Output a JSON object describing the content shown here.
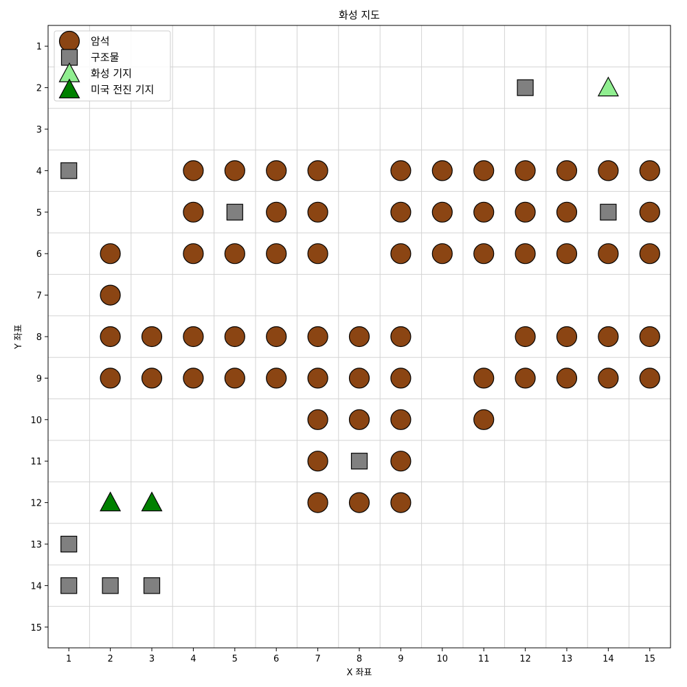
{
  "chart_data": {
    "type": "scatter",
    "title": "화성 지도",
    "xlabel": "X 좌표",
    "ylabel": "Y 좌표",
    "xlim": [
      0.5,
      15.5
    ],
    "ylim": [
      15.5,
      0.5
    ],
    "y_inverted": true,
    "xticks": [
      "1",
      "2",
      "3",
      "4",
      "5",
      "6",
      "7",
      "8",
      "9",
      "10",
      "11",
      "12",
      "13",
      "14",
      "15"
    ],
    "yticks": [
      "1",
      "2",
      "3",
      "4",
      "5",
      "6",
      "7",
      "8",
      "9",
      "10",
      "11",
      "12",
      "13",
      "14",
      "15"
    ],
    "grid": true,
    "grid_style": "cell-boundaries",
    "legend_position": "top-left",
    "series": [
      {
        "name": "암석",
        "marker": "circle",
        "color": "#8B4513",
        "points": [
          [
            4,
            4
          ],
          [
            5,
            4
          ],
          [
            6,
            4
          ],
          [
            7,
            4
          ],
          [
            9,
            4
          ],
          [
            10,
            4
          ],
          [
            11,
            4
          ],
          [
            12,
            4
          ],
          [
            13,
            4
          ],
          [
            14,
            4
          ],
          [
            15,
            4
          ],
          [
            4,
            5
          ],
          [
            6,
            5
          ],
          [
            7,
            5
          ],
          [
            9,
            5
          ],
          [
            10,
            5
          ],
          [
            11,
            5
          ],
          [
            12,
            5
          ],
          [
            13,
            5
          ],
          [
            15,
            5
          ],
          [
            2,
            6
          ],
          [
            4,
            6
          ],
          [
            5,
            6
          ],
          [
            6,
            6
          ],
          [
            7,
            6
          ],
          [
            9,
            6
          ],
          [
            10,
            6
          ],
          [
            11,
            6
          ],
          [
            12,
            6
          ],
          [
            13,
            6
          ],
          [
            14,
            6
          ],
          [
            15,
            6
          ],
          [
            2,
            7
          ],
          [
            2,
            8
          ],
          [
            3,
            8
          ],
          [
            4,
            8
          ],
          [
            5,
            8
          ],
          [
            6,
            8
          ],
          [
            7,
            8
          ],
          [
            8,
            8
          ],
          [
            9,
            8
          ],
          [
            12,
            8
          ],
          [
            13,
            8
          ],
          [
            14,
            8
          ],
          [
            15,
            8
          ],
          [
            2,
            9
          ],
          [
            3,
            9
          ],
          [
            4,
            9
          ],
          [
            5,
            9
          ],
          [
            6,
            9
          ],
          [
            7,
            9
          ],
          [
            8,
            9
          ],
          [
            9,
            9
          ],
          [
            11,
            9
          ],
          [
            12,
            9
          ],
          [
            13,
            9
          ],
          [
            14,
            9
          ],
          [
            15,
            9
          ],
          [
            7,
            10
          ],
          [
            8,
            10
          ],
          [
            9,
            10
          ],
          [
            11,
            10
          ],
          [
            7,
            11
          ],
          [
            9,
            11
          ],
          [
            7,
            12
          ],
          [
            8,
            12
          ],
          [
            9,
            12
          ]
        ]
      },
      {
        "name": "구조물",
        "marker": "square",
        "color": "#808080",
        "points": [
          [
            12,
            2
          ],
          [
            1,
            4
          ],
          [
            5,
            5
          ],
          [
            14,
            5
          ],
          [
            8,
            11
          ],
          [
            1,
            13
          ],
          [
            1,
            14
          ],
          [
            2,
            14
          ],
          [
            3,
            14
          ]
        ]
      },
      {
        "name": "화성 기지",
        "marker": "triangle",
        "color": "#90EE90",
        "points": [
          [
            14,
            2
          ]
        ]
      },
      {
        "name": "미국 전진 기지",
        "marker": "triangle",
        "color": "#008000",
        "points": [
          [
            2,
            12
          ],
          [
            3,
            12
          ]
        ]
      }
    ]
  }
}
